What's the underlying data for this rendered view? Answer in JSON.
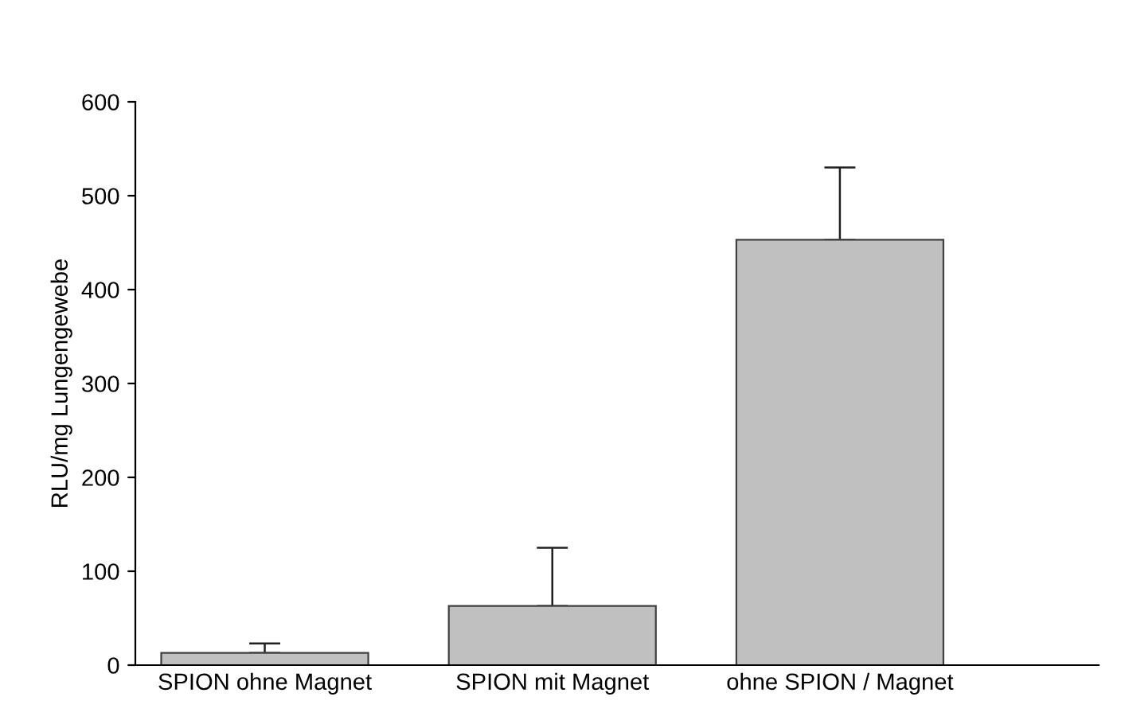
{
  "chart_data": {
    "type": "bar",
    "ylabel": "RLU/mg Lungengewebe",
    "categories": [
      "SPION ohne Magnet",
      "SPION mit Magnet",
      "ohne SPION / Magnet"
    ],
    "values": [
      13,
      63,
      453
    ],
    "errors": [
      [
        13,
        23
      ],
      [
        63,
        125
      ],
      [
        453,
        530
      ]
    ],
    "color": "#c0c0c0",
    "ylim": [
      0,
      600
    ],
    "yticks": [
      0,
      100,
      200,
      300,
      400,
      500,
      600
    ],
    "grid": false,
    "legend": false
  }
}
